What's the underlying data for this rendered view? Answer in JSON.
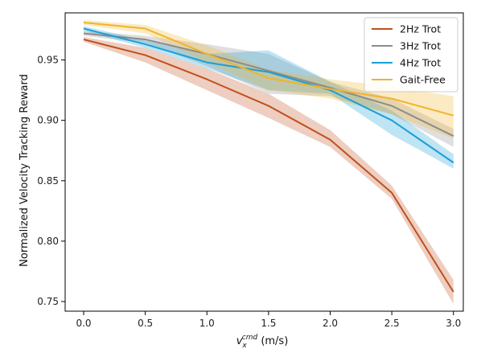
{
  "chart_data": {
    "type": "line",
    "xlabel_main": "v",
    "xlabel_sub": "x",
    "xlabel_sup": "cmd",
    "xlabel_unit": " (m/s)",
    "ylabel": "Normalized Velocity Tracking Reward",
    "xlim": [
      -0.15,
      3.08
    ],
    "ylim": [
      0.742,
      0.989
    ],
    "xticks": [
      "0.0",
      "0.5",
      "1.0",
      "1.5",
      "2.0",
      "2.5",
      "3.0"
    ],
    "yticks": [
      "0.75",
      "0.80",
      "0.85",
      "0.90",
      "0.95"
    ],
    "grid": false,
    "legend_position": "top-right",
    "x": [
      0.0,
      0.5,
      1.0,
      1.5,
      2.0,
      2.5,
      3.0
    ],
    "series": [
      {
        "name": "2Hz Trot",
        "color": "#c0501c",
        "values": [
          0.967,
          0.954,
          0.934,
          0.912,
          0.884,
          0.84,
          0.758
        ],
        "lower": [
          0.965,
          0.948,
          0.925,
          0.902,
          0.878,
          0.835,
          0.748
        ],
        "upper": [
          0.969,
          0.96,
          0.943,
          0.922,
          0.892,
          0.846,
          0.768
        ]
      },
      {
        "name": "3Hz Trot",
        "color": "#8c8c8c",
        "values": [
          0.972,
          0.967,
          0.955,
          0.941,
          0.927,
          0.912,
          0.887
        ],
        "lower": [
          0.97,
          0.964,
          0.945,
          0.922,
          0.92,
          0.905,
          0.878
        ],
        "upper": [
          0.974,
          0.97,
          0.963,
          0.955,
          0.932,
          0.918,
          0.893
        ]
      },
      {
        "name": "4Hz Trot",
        "color": "#1a9fd6",
        "values": [
          0.976,
          0.963,
          0.948,
          0.94,
          0.925,
          0.9,
          0.865
        ],
        "lower": [
          0.974,
          0.96,
          0.943,
          0.925,
          0.922,
          0.888,
          0.86
        ],
        "upper": [
          0.978,
          0.966,
          0.955,
          0.958,
          0.932,
          0.908,
          0.872
        ]
      },
      {
        "name": "Gait-Free",
        "color": "#f0b429",
        "values": [
          0.981,
          0.976,
          0.955,
          0.935,
          0.926,
          0.918,
          0.904
        ],
        "lower": [
          0.979,
          0.972,
          0.948,
          0.925,
          0.918,
          0.905,
          0.885
        ],
        "upper": [
          0.983,
          0.979,
          0.962,
          0.942,
          0.934,
          0.928,
          0.92
        ]
      }
    ]
  }
}
